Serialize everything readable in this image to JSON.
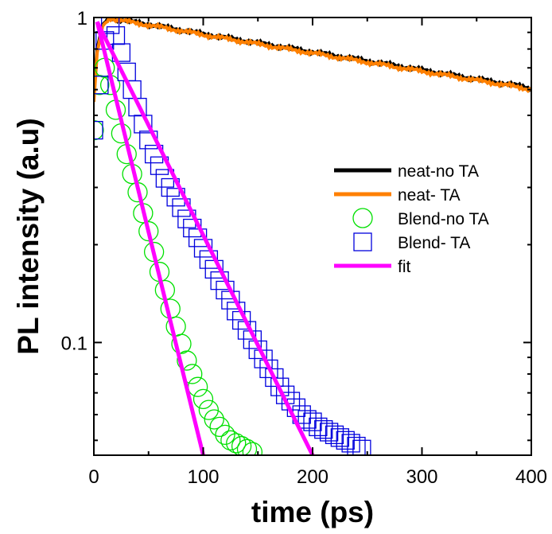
{
  "chart_data": {
    "type": "scatter",
    "title": "",
    "xlabel": "time (ps)",
    "ylabel": "PL intensity (a.u)",
    "xlim": [
      0,
      400
    ],
    "ylim": [
      0.045,
      1
    ],
    "yscale": "log",
    "x_ticks": [
      0,
      100,
      200,
      300,
      400
    ],
    "x_tick_labels": [
      "0",
      "100",
      "200",
      "300",
      "400"
    ],
    "y_ticks": [
      0.1,
      1
    ],
    "y_tick_labels": [
      "0.1",
      "1"
    ],
    "grid": false,
    "legend_position": "right",
    "series": [
      {
        "name": "neat-no TA",
        "style": "line",
        "color": "#000000",
        "x": [
          0,
          3,
          8,
          14,
          20,
          40,
          60,
          80,
          100,
          120,
          140,
          160,
          180,
          200,
          220,
          240,
          260,
          280,
          300,
          320,
          340,
          360,
          380,
          400
        ],
        "y": [
          0.6,
          0.8,
          0.95,
          1.0,
          0.99,
          0.965,
          0.94,
          0.915,
          0.89,
          0.868,
          0.846,
          0.825,
          0.804,
          0.784,
          0.764,
          0.745,
          0.726,
          0.708,
          0.69,
          0.672,
          0.655,
          0.639,
          0.623,
          0.607
        ]
      },
      {
        "name": "neat- TA",
        "style": "line",
        "color": "#ff8000",
        "x": [
          0,
          3,
          8,
          14,
          20,
          40,
          60,
          80,
          100,
          120,
          140,
          160,
          180,
          200,
          220,
          240,
          260,
          280,
          300,
          320,
          340,
          360,
          380,
          400
        ],
        "y": [
          0.55,
          0.78,
          0.94,
          1.0,
          0.985,
          0.96,
          0.935,
          0.91,
          0.885,
          0.862,
          0.84,
          0.818,
          0.797,
          0.777,
          0.757,
          0.738,
          0.719,
          0.701,
          0.683,
          0.666,
          0.649,
          0.633,
          0.617,
          0.6
        ]
      },
      {
        "name": "Blend-no TA",
        "style": "circle",
        "color": "#00e000",
        "x": [
          0,
          5,
          10,
          15,
          20,
          25,
          30,
          35,
          40,
          45,
          50,
          55,
          60,
          65,
          70,
          75,
          80,
          85,
          90,
          95,
          100,
          105,
          110,
          115,
          120,
          125,
          130,
          135,
          140,
          145
        ],
        "y": [
          0.45,
          0.62,
          0.7,
          0.62,
          0.52,
          0.44,
          0.38,
          0.33,
          0.29,
          0.25,
          0.22,
          0.19,
          0.165,
          0.145,
          0.127,
          0.112,
          0.099,
          0.088,
          0.08,
          0.073,
          0.067,
          0.062,
          0.058,
          0.055,
          0.052,
          0.05,
          0.049,
          0.048,
          0.047,
          0.046
        ]
      },
      {
        "name": "Blend- TA",
        "style": "square",
        "color": "#0000dd",
        "x": [
          0,
          5,
          10,
          15,
          20,
          25,
          30,
          35,
          40,
          45,
          50,
          55,
          60,
          65,
          70,
          75,
          80,
          85,
          90,
          95,
          100,
          105,
          110,
          115,
          120,
          125,
          130,
          135,
          140,
          145,
          150,
          155,
          160,
          165,
          170,
          175,
          180,
          185,
          190,
          195,
          200,
          205,
          210,
          215,
          220,
          225,
          230,
          235,
          240,
          245
        ],
        "y": [
          0.45,
          0.62,
          0.85,
          0.95,
          0.88,
          0.78,
          0.68,
          0.6,
          0.53,
          0.47,
          0.42,
          0.38,
          0.35,
          0.32,
          0.3,
          0.28,
          0.26,
          0.24,
          0.225,
          0.21,
          0.195,
          0.18,
          0.168,
          0.155,
          0.145,
          0.135,
          0.125,
          0.117,
          0.109,
          0.102,
          0.095,
          0.089,
          0.083,
          0.078,
          0.073,
          0.069,
          0.066,
          0.063,
          0.06,
          0.058,
          0.057,
          0.055,
          0.054,
          0.053,
          0.052,
          0.051,
          0.05,
          0.049,
          0.048,
          0.047
        ]
      },
      {
        "name": "fit",
        "style": "fitline",
        "color": "#ff00ff",
        "curves": [
          {
            "x": [
              3,
              100
            ],
            "y": [
              0.97,
              0.045
            ]
          },
          {
            "x": [
              3,
              200
            ],
            "y": [
              0.97,
              0.045
            ]
          }
        ]
      }
    ]
  }
}
